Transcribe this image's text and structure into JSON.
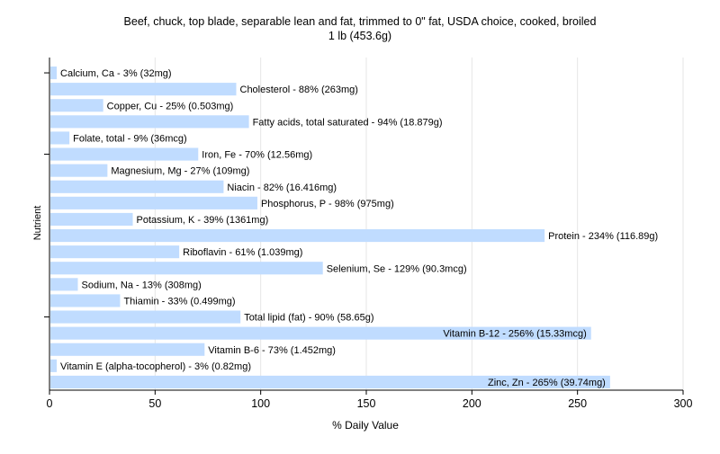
{
  "chart_data": {
    "type": "bar",
    "orientation": "horizontal",
    "title": "Beef, chuck, top blade, separable lean and fat, trimmed to 0\" fat, USDA choice, cooked, broiled",
    "subtitle": "1 lb (453.6g)",
    "xlabel": "% Daily Value",
    "ylabel": "Nutrient",
    "xlim": [
      0,
      300
    ],
    "x_ticks": [
      0,
      50,
      100,
      150,
      200,
      250,
      300
    ],
    "grid": true,
    "bar_color": "#c0dcff",
    "categories": [
      "Calcium, Ca",
      "Cholesterol",
      "Copper, Cu",
      "Fatty acids, total saturated",
      "Folate, total",
      "Iron, Fe",
      "Magnesium, Mg",
      "Niacin",
      "Phosphorus, P",
      "Potassium, K",
      "Protein",
      "Riboflavin",
      "Selenium, Se",
      "Sodium, Na",
      "Thiamin",
      "Total lipid (fat)",
      "Vitamin B-12",
      "Vitamin B-6",
      "Vitamin E (alpha-tocopherol)",
      "Zinc, Zn"
    ],
    "values": [
      3,
      88,
      25,
      94,
      9,
      70,
      27,
      82,
      98,
      39,
      234,
      61,
      129,
      13,
      33,
      90,
      256,
      73,
      3,
      265
    ],
    "labels": [
      "Calcium, Ca - 3% (32mg)",
      "Cholesterol - 88% (263mg)",
      "Copper, Cu - 25% (0.503mg)",
      "Fatty acids, total saturated - 94% (18.879g)",
      "Folate, total - 9% (36mcg)",
      "Iron, Fe - 70% (12.56mg)",
      "Magnesium, Mg - 27% (109mg)",
      "Niacin - 82% (16.416mg)",
      "Phosphorus, P - 98% (975mg)",
      "Potassium, K - 39% (1361mg)",
      "Protein - 234% (116.89g)",
      "Riboflavin - 61% (1.039mg)",
      "Selenium, Se - 129% (90.3mcg)",
      "Sodium, Na - 13% (308mg)",
      "Thiamin - 33% (0.499mg)",
      "Total lipid (fat) - 90% (58.65g)",
      "Vitamin B-12 - 256% (15.33mcg)",
      "Vitamin B-6 - 73% (1.452mg)",
      "Vitamin E (alpha-tocopherol) - 3% (0.82mg)",
      "Zinc, Zn - 265% (39.74mg)"
    ]
  }
}
